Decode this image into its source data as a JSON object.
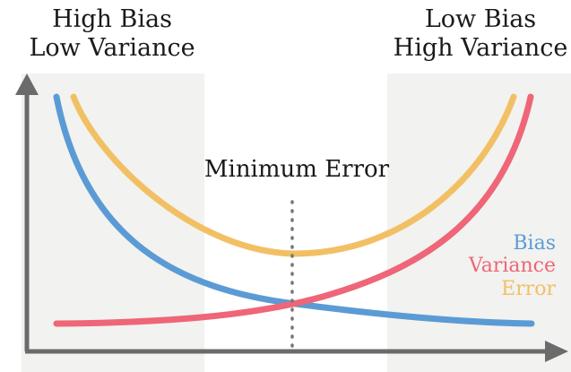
{
  "regions": {
    "left": {
      "line1": "High Bias",
      "line2": "Low Variance"
    },
    "right": {
      "line1": "Low Bias",
      "line2": "High Variance"
    }
  },
  "annotation": {
    "minimum_error": "Minimum Error"
  },
  "legend": {
    "bias": "Bias",
    "variance": "Variance",
    "error": "Error"
  },
  "colors": {
    "bias": "#5b9bd5",
    "variance": "#ee6677",
    "error": "#f2c064",
    "axis": "#6b6b6b",
    "region_shade": "#f2f2f0",
    "minimum_line": "#777777",
    "text": "#1a1a1a"
  },
  "icons": {
    "x_axis_arrow": "arrow-right-icon",
    "y_axis_arrow": "arrow-up-icon"
  }
}
